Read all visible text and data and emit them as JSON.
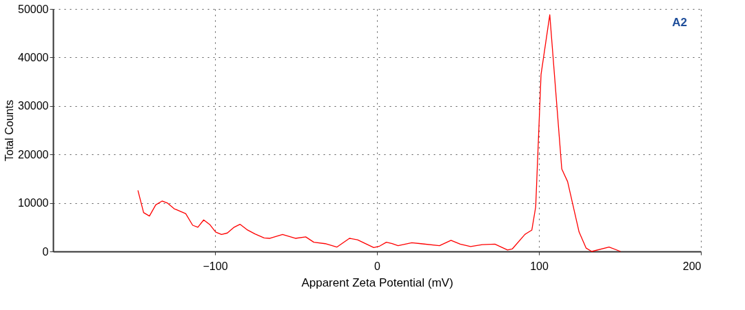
{
  "chart_data": {
    "type": "line",
    "xlabel": "Apparent Zeta Potential (mV)",
    "ylabel": "Total Counts",
    "annotations": [
      "A2"
    ],
    "series": [
      {
        "color": "#ff0000",
        "x": [
          -147.6,
          -144.1,
          -140.5,
          -136.6,
          -132.6,
          -129.5,
          -125.2,
          -118.1,
          -113.8,
          -110.6,
          -107,
          -103.1,
          -99.6,
          -96,
          -92.4,
          -88.2,
          -84.6,
          -80.3,
          -75.3,
          -69.7,
          -66.1,
          -58.3,
          -50.4,
          -44,
          -39,
          -31.9,
          -24.8,
          -17,
          -12,
          -2,
          1.6,
          5.8,
          9.4,
          13,
          21.5,
          27.2,
          38.6,
          45.7,
          51.4,
          57.8,
          65,
          72.8,
          80.6,
          83.5,
          91.3,
          95.6,
          98,
          101.3,
          106.7,
          114.1,
          117.7,
          124.8,
          129.1,
          132.6,
          143.3,
          150.4
        ],
        "values": [
          12600,
          8000,
          7300,
          9600,
          10400,
          10000,
          8800,
          7800,
          5400,
          5000,
          6500,
          5500,
          4000,
          3500,
          3800,
          5000,
          5600,
          4500,
          3600,
          2800,
          2700,
          3500,
          2700,
          3000,
          1900,
          1600,
          900,
          2700,
          2400,
          800,
          1100,
          1900,
          1600,
          1200,
          1800,
          1600,
          1200,
          2300,
          1500,
          1000,
          1400,
          1500,
          300,
          500,
          3500,
          4400,
          9200,
          36500,
          48800,
          17000,
          14400,
          4000,
          700,
          0,
          900,
          0
        ]
      }
    ],
    "xlim": [
      -200,
      200
    ],
    "xticks": [
      -100,
      0,
      100,
      200
    ],
    "ylim": [
      0,
      50000
    ],
    "yticks": [
      0,
      10000,
      20000,
      30000,
      40000,
      50000
    ],
    "grid": true,
    "legend": false
  }
}
